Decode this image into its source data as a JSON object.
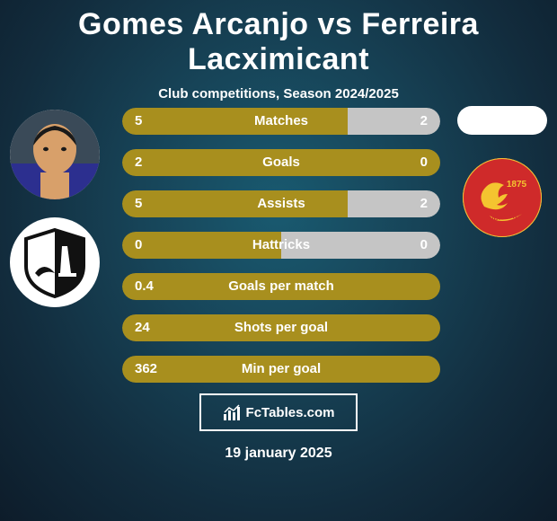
{
  "header": {
    "player1_name": "Gomes Arcanjo",
    "vs": "vs",
    "player2_name": "Ferreira Lacximicant",
    "subtitle": "Club competitions, Season 2024/2025"
  },
  "colors": {
    "bar_left": "#a88f1e",
    "bar_right": "#c5c5c5",
    "bar_right_fill": "#a88f1e",
    "bg_radial_inner": "#195a70",
    "bg_radial_outer": "#0d1c2a",
    "text": "#ffffff",
    "club2_bg": "#cf2a2a",
    "club2_accent": "#f4c430"
  },
  "bars": [
    {
      "label": "Matches",
      "left_val": "5",
      "right_val": "2",
      "left_pct": 71,
      "right_pct": 29,
      "right_color": "#c5c5c5"
    },
    {
      "label": "Goals",
      "left_val": "2",
      "right_val": "0",
      "left_pct": 100,
      "right_pct": 0,
      "right_color": "#c5c5c5"
    },
    {
      "label": "Assists",
      "left_val": "5",
      "right_val": "2",
      "left_pct": 71,
      "right_pct": 29,
      "right_color": "#c5c5c5"
    },
    {
      "label": "Hattricks",
      "left_val": "0",
      "right_val": "0",
      "left_pct": 50,
      "right_pct": 50,
      "right_color": "#c5c5c5"
    },
    {
      "label": "Goals per match",
      "left_val": "0.4",
      "right_val": "",
      "left_pct": 100,
      "right_pct": 0,
      "right_color": "#c5c5c5"
    },
    {
      "label": "Shots per goal",
      "left_val": "24",
      "right_val": "",
      "left_pct": 100,
      "right_pct": 0,
      "right_color": "#c5c5c5"
    },
    {
      "label": "Min per goal",
      "left_val": "362",
      "right_val": "",
      "left_pct": 100,
      "right_pct": 0,
      "right_color": "#c5c5c5"
    }
  ],
  "brand": {
    "text": "FcTables.com"
  },
  "date": "19 january 2025",
  "avatars": {
    "player1_face_bg": "#d8a06a",
    "club1_bg": "#ffffff",
    "player2_pill_bg": "#ffffff"
  }
}
